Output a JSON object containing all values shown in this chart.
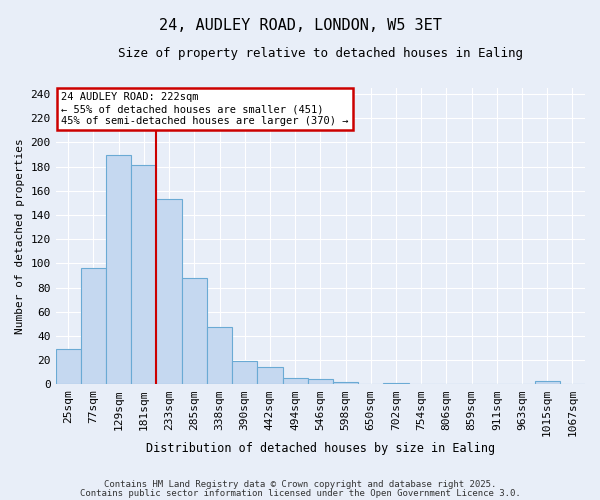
{
  "title1": "24, AUDLEY ROAD, LONDON, W5 3ET",
  "title2": "Size of property relative to detached houses in Ealing",
  "xlabel": "Distribution of detached houses by size in Ealing",
  "ylabel": "Number of detached properties",
  "categories": [
    "25sqm",
    "77sqm",
    "129sqm",
    "181sqm",
    "233sqm",
    "285sqm",
    "338sqm",
    "390sqm",
    "442sqm",
    "494sqm",
    "546sqm",
    "598sqm",
    "650sqm",
    "702sqm",
    "754sqm",
    "806sqm",
    "859sqm",
    "911sqm",
    "963sqm",
    "1015sqm",
    "1067sqm"
  ],
  "values": [
    29,
    96,
    190,
    181,
    153,
    88,
    47,
    19,
    14,
    5,
    4,
    2,
    0,
    1,
    0,
    0,
    0,
    0,
    0,
    3,
    0
  ],
  "bar_color": "#c5d8f0",
  "bar_edge_color": "#6aaad4",
  "red_line_index": 3,
  "annotation_line1": "24 AUDLEY ROAD: 222sqm",
  "annotation_line2": "← 55% of detached houses are smaller (451)",
  "annotation_line3": "45% of semi-detached houses are larger (370) →",
  "annotation_box_color": "#ffffff",
  "annotation_box_edge": "#cc0000",
  "ylim": [
    0,
    245
  ],
  "yticks": [
    0,
    20,
    40,
    60,
    80,
    100,
    120,
    140,
    160,
    180,
    200,
    220,
    240
  ],
  "background_color": "#e8eef8",
  "grid_color": "#ffffff",
  "footer1": "Contains HM Land Registry data © Crown copyright and database right 2025.",
  "footer2": "Contains public sector information licensed under the Open Government Licence 3.0."
}
